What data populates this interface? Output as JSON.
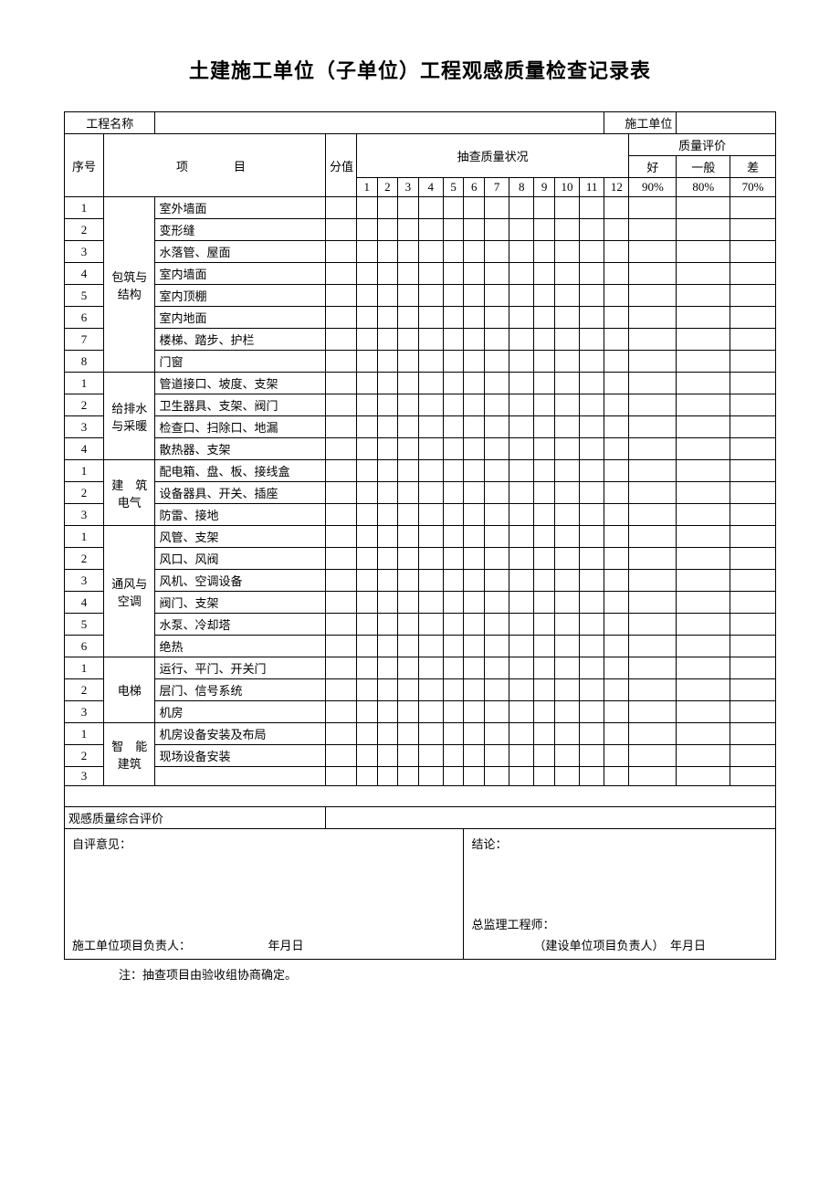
{
  "title": "土建施工单位（子单位）工程观感质量检查记录表",
  "header_row": {
    "project_name": "工程名称",
    "contractor": "施工单位"
  },
  "columns": {
    "seq": "序号",
    "item": "项　　目",
    "score": "分值",
    "sample_status": "抽查质量状况",
    "quality_eval": "质量评价",
    "good": "好",
    "normal": "一般",
    "bad": "差",
    "good_pct": "90%",
    "normal_pct": "80%",
    "bad_pct": "70%"
  },
  "numbers": [
    "1",
    "2",
    "3",
    "4",
    "5",
    "6",
    "7",
    "8",
    "9",
    "10",
    "11",
    "12"
  ],
  "sections": [
    {
      "cat": "包筑与结构",
      "rows": [
        {
          "n": "1",
          "t": "室外墙面"
        },
        {
          "n": "2",
          "t": "变形缝"
        },
        {
          "n": "3",
          "t": "水落管、屋面"
        },
        {
          "n": "4",
          "t": "室内墙面"
        },
        {
          "n": "5",
          "t": "室内顶棚"
        },
        {
          "n": "6",
          "t": "室内地面"
        },
        {
          "n": "7",
          "t": "楼梯、踏步、护栏"
        },
        {
          "n": "8",
          "t": "门窗"
        }
      ]
    },
    {
      "cat": "给排水与采暖",
      "rows": [
        {
          "n": "1",
          "t": "管道接口、坡度、支架"
        },
        {
          "n": "2",
          "t": "卫生器具、支架、阀门"
        },
        {
          "n": "3",
          "t": "检查口、扫除口、地漏"
        },
        {
          "n": "4",
          "t": "散热器、支架"
        }
      ]
    },
    {
      "cat": "建　筑电气",
      "rows": [
        {
          "n": "1",
          "t": "配电箱、盘、板、接线盒"
        },
        {
          "n": "2",
          "t": "设备器具、开关、插座"
        },
        {
          "n": "3",
          "t": "防雷、接地"
        }
      ]
    },
    {
      "cat": "通风与空调",
      "rows": [
        {
          "n": "1",
          "t": "风管、支架"
        },
        {
          "n": "2",
          "t": "风口、风阀"
        },
        {
          "n": "3",
          "t": "风机、空调设备"
        },
        {
          "n": "4",
          "t": "阀门、支架"
        },
        {
          "n": "5",
          "t": "水泵、冷却塔"
        },
        {
          "n": "6",
          "t": "绝热"
        }
      ]
    },
    {
      "cat": "电梯",
      "rows": [
        {
          "n": "1",
          "t": "运行、平门、开关门"
        },
        {
          "n": "2",
          "t": "层门、信号系统"
        },
        {
          "n": "3",
          "t": "机房"
        }
      ]
    },
    {
      "cat": "智　能建筑",
      "rows": [
        {
          "n": "1",
          "t": "机房设备安装及布局"
        },
        {
          "n": "2",
          "t": "现场设备安装"
        },
        {
          "n": "3",
          "t": ""
        }
      ]
    }
  ],
  "summary_label": "观感质量综合评价",
  "sign_left_title": "自评意见：",
  "sign_left_bot": "施工单位项目负责人：　　　　　　　年月日",
  "sign_right_title": "结论：",
  "sign_right_mid": "总监理工程师：",
  "sign_right_bot": "（建设单位项目负责人）　年月日",
  "footnote": "注：抽查项目由验收组协商确定。"
}
